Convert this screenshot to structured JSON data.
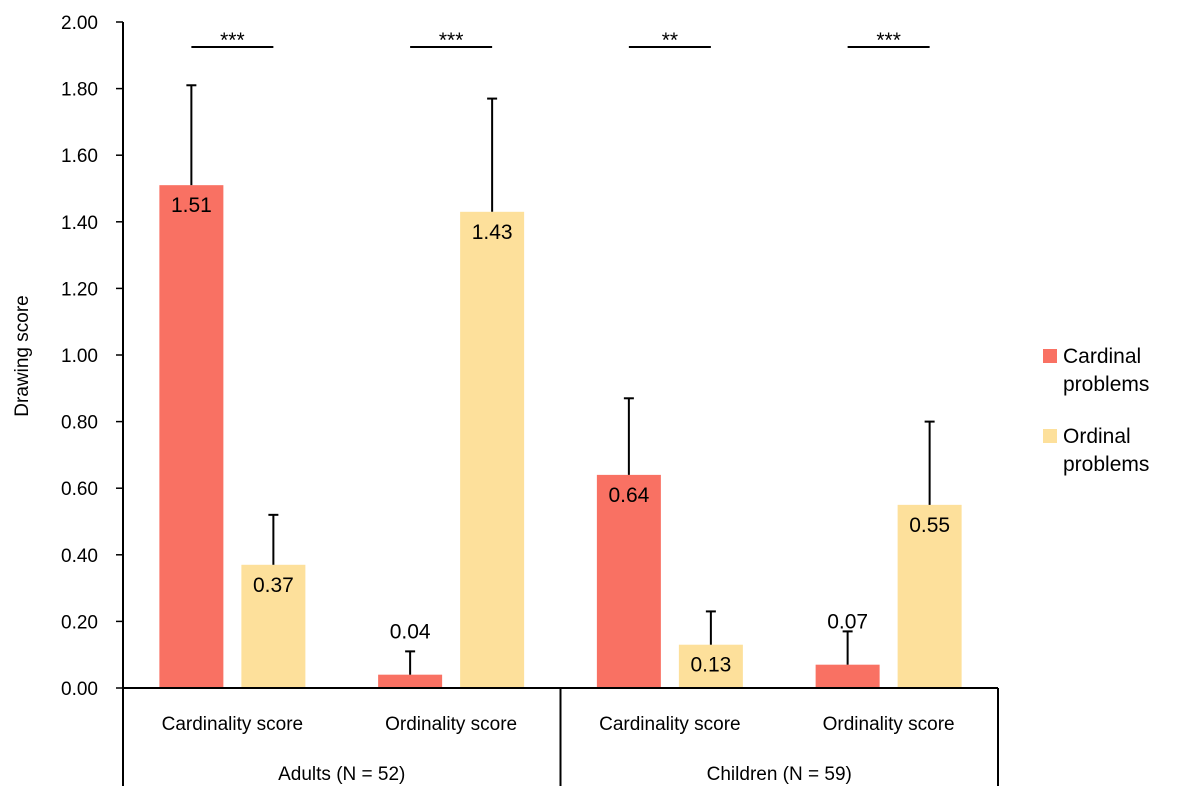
{
  "chart_data": {
    "type": "bar",
    "title": "",
    "xlabel": "",
    "ylabel": "Drawing score",
    "ylim": [
      0,
      2
    ],
    "yticks": [
      "0.00",
      "0.20",
      "0.40",
      "0.60",
      "0.80",
      "1.00",
      "1.20",
      "1.40",
      "1.60",
      "1.80",
      "2.00"
    ],
    "grid": false,
    "legend_position": "right",
    "groups": [
      {
        "label": "Adults (N = 52)",
        "categories": [
          {
            "label": "Cardinality score",
            "significance": "***",
            "values": [
              1.51,
              0.37
            ],
            "error_upper": [
              1.81,
              0.52
            ],
            "value_labels": [
              "1.51",
              "0.37"
            ]
          },
          {
            "label": "Ordinality score",
            "significance": "***",
            "values": [
              0.04,
              1.43
            ],
            "error_upper": [
              0.11,
              1.77
            ],
            "value_labels": [
              "0.04",
              "1.43"
            ]
          }
        ]
      },
      {
        "label": "Children (N = 59)",
        "categories": [
          {
            "label": "Cardinality score",
            "significance": "**",
            "values": [
              0.64,
              0.13
            ],
            "error_upper": [
              0.87,
              0.23
            ],
            "value_labels": [
              "0.64",
              "0.13"
            ]
          },
          {
            "label": "Ordinality score",
            "significance": "***",
            "values": [
              0.07,
              0.55
            ],
            "error_upper": [
              0.17,
              0.8
            ],
            "value_labels": [
              "0.07",
              "0.55"
            ]
          }
        ]
      }
    ],
    "series": [
      {
        "name": "Cardinal problems",
        "legend_lines": [
          "Cardinal",
          "problems"
        ],
        "color": "#f97163"
      },
      {
        "name": "Ordinal problems",
        "legend_lines": [
          "Ordinal",
          "problems"
        ],
        "color": "#fde09b"
      }
    ]
  }
}
